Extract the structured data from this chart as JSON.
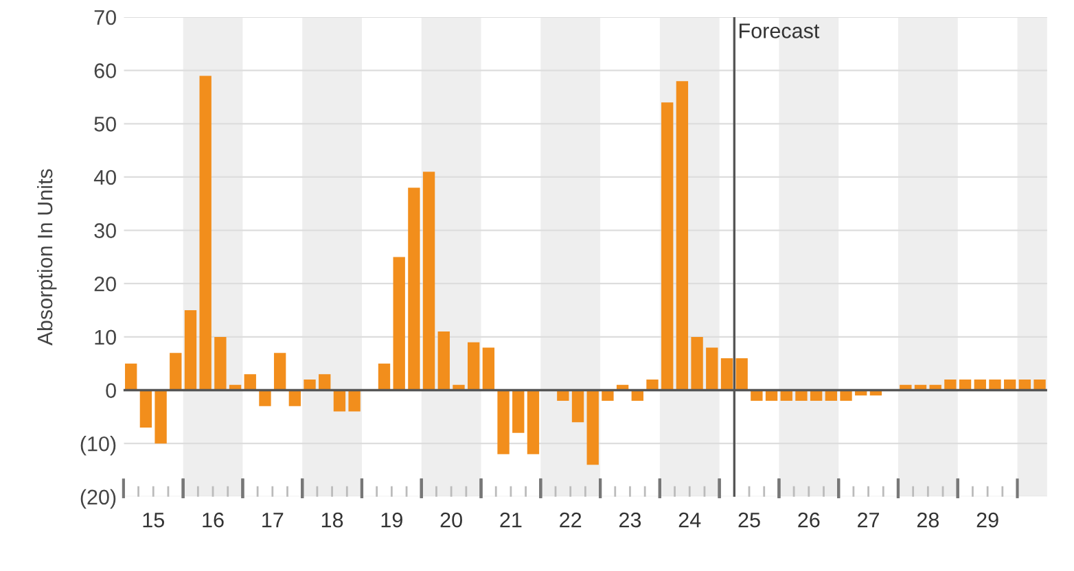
{
  "chart_data": {
    "type": "bar",
    "ylabel": "Absorption In Units",
    "x": [
      14.625,
      14.875,
      15.125,
      15.375,
      15.625,
      15.875,
      16.125,
      16.375,
      16.625,
      16.875,
      17.125,
      17.375,
      17.625,
      17.875,
      18.125,
      18.375,
      18.625,
      18.875,
      19.125,
      19.375,
      19.625,
      19.875,
      20.125,
      20.375,
      20.625,
      20.875,
      21.125,
      21.375,
      21.625,
      21.875,
      22.125,
      22.375,
      22.625,
      22.875,
      23.125,
      23.375,
      23.625,
      23.875,
      24.125,
      24.375,
      24.625,
      24.875,
      25.125,
      25.375,
      25.625,
      25.875,
      26.125,
      26.375,
      26.625,
      26.875,
      27.125,
      27.375,
      27.625,
      27.875,
      28.125,
      28.375,
      28.625,
      28.875,
      29.125,
      29.375,
      29.625,
      29.875
    ],
    "values": [
      5,
      -7,
      -10,
      7,
      15,
      59,
      10,
      1,
      3,
      -3,
      7,
      -3,
      2,
      3,
      -4,
      -4,
      0,
      5,
      25,
      38,
      41,
      11,
      1,
      9,
      8,
      -12,
      -8,
      -12,
      0,
      -2,
      -6,
      -14,
      -2,
      1,
      -2,
      2,
      54,
      58,
      10,
      8,
      6,
      6,
      -2,
      -2,
      -2,
      -2,
      -2,
      -2,
      -2,
      -1,
      -1,
      0,
      1,
      1,
      1,
      2,
      2,
      2,
      2,
      2,
      2,
      2
    ],
    "color": "#f28e1c",
    "xlim": [
      14.5,
      30.0
    ],
    "xticks": [
      15,
      16,
      17,
      18,
      19,
      20,
      21,
      22,
      23,
      24,
      25,
      26,
      27,
      28,
      29
    ],
    "ylim": [
      -20,
      70
    ],
    "yticks": [
      {
        "value": -20,
        "label": "(20)"
      },
      {
        "value": -10,
        "label": "(10)"
      },
      0,
      10,
      20,
      30,
      40,
      50,
      60,
      70
    ],
    "grid": "y",
    "bands": [
      {
        "axis": "x",
        "from": 15.5,
        "to": 16.5,
        "color": "#eeeeee"
      },
      {
        "axis": "x",
        "from": 17.5,
        "to": 18.5,
        "color": "#eeeeee"
      },
      {
        "axis": "x",
        "from": 19.5,
        "to": 20.5,
        "color": "#eeeeee"
      },
      {
        "axis": "x",
        "from": 21.5,
        "to": 22.5,
        "color": "#eeeeee"
      },
      {
        "axis": "x",
        "from": 23.5,
        "to": 24.5,
        "color": "#eeeeee"
      },
      {
        "axis": "x",
        "from": 25.5,
        "to": 26.5,
        "color": "#eeeeee"
      },
      {
        "axis": "x",
        "from": 27.5,
        "to": 28.5,
        "color": "#eeeeee"
      },
      {
        "axis": "x",
        "from": 29.5,
        "to": 30.0,
        "color": "#eeeeee"
      }
    ],
    "ref_lines": [
      {
        "axis": "x",
        "value": 24.75,
        "label": "Forecast",
        "color": "#555555"
      }
    ]
  }
}
